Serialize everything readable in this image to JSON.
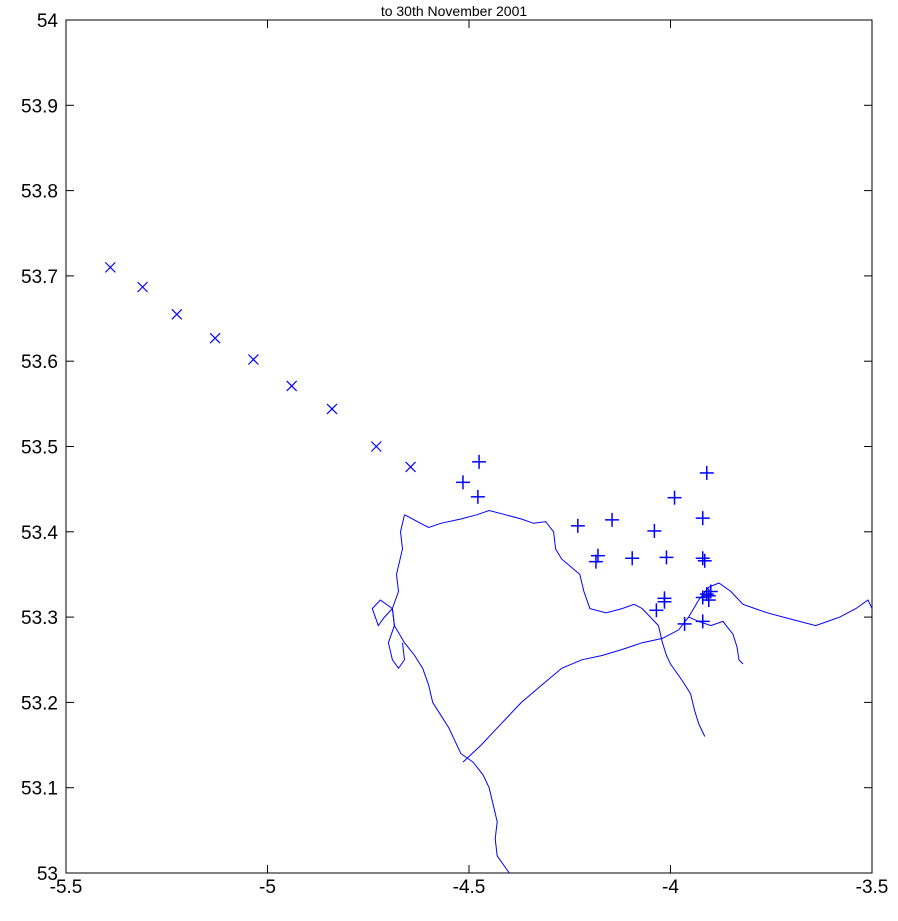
{
  "chart_data": {
    "type": "scatter",
    "title": "to 30th November 2001",
    "xlabel": "",
    "ylabel": "",
    "xlim": [
      -5.5,
      -3.5
    ],
    "ylim": [
      53,
      54
    ],
    "xticks": [
      -5.5,
      -5,
      -4.5,
      -4,
      -3.5
    ],
    "xtick_labels": [
      "-5.5",
      "-5",
      "-4.5",
      "-4",
      "-3.5"
    ],
    "yticks": [
      53,
      53.1,
      53.2,
      53.3,
      53.4,
      53.5,
      53.6,
      53.7,
      53.8,
      53.9,
      54
    ],
    "ytick_labels": [
      "53",
      "53.1",
      "53.2",
      "53.3",
      "53.4",
      "53.5",
      "53.6",
      "53.7",
      "53.8",
      "53.9",
      "54"
    ],
    "grid": false,
    "color": "#0000ff",
    "series": [
      {
        "marker": "x",
        "x": [
          -5.39,
          -5.31,
          -5.225,
          -5.13,
          -5.035,
          -4.94,
          -4.84,
          -4.73,
          -4.645
        ],
        "y": [
          53.71,
          53.687,
          53.655,
          53.627,
          53.602,
          53.571,
          53.544,
          53.5,
          53.476
        ]
      },
      {
        "marker": "+",
        "x": [
          -4.515,
          -4.475,
          -4.478,
          -4.23,
          -4.185,
          -4.18,
          -4.145,
          -4.095,
          -4.04,
          -4.035,
          -4.015,
          -4.01,
          -4.015,
          -3.99,
          -3.965,
          -3.92,
          -3.91,
          -3.92,
          -3.915,
          -3.91,
          -3.905,
          -3.92,
          -3.92,
          -3.9,
          -3.905
        ],
        "y": [
          53.458,
          53.482,
          53.441,
          53.407,
          53.365,
          53.372,
          53.414,
          53.369,
          53.401,
          53.308,
          53.318,
          53.37,
          53.322,
          53.44,
          53.292,
          53.416,
          53.469,
          53.369,
          53.366,
          53.327,
          53.32,
          53.295,
          53.323,
          53.33,
          53.325
        ]
      }
    ],
    "coastline": [
      [
        [
          -4.66,
          53.42
        ],
        [
          -4.62,
          53.41
        ],
        [
          -4.6,
          53.405
        ],
        [
          -4.57,
          53.41
        ],
        [
          -4.52,
          53.415
        ],
        [
          -4.48,
          53.42
        ],
        [
          -4.45,
          53.425
        ],
        [
          -4.41,
          53.42
        ],
        [
          -4.37,
          53.415
        ],
        [
          -4.34,
          53.41
        ],
        [
          -4.31,
          53.412
        ],
        [
          -4.29,
          53.4
        ],
        [
          -4.285,
          53.38
        ],
        [
          -4.27,
          53.368
        ],
        [
          -4.25,
          53.36
        ],
        [
          -4.225,
          53.35
        ],
        [
          -4.215,
          53.33
        ],
        [
          -4.2,
          53.31
        ],
        [
          -4.16,
          53.305
        ],
        [
          -4.12,
          53.31
        ],
        [
          -4.09,
          53.315
        ],
        [
          -4.07,
          53.31
        ],
        [
          -4.05,
          53.3
        ],
        [
          -4.03,
          53.29
        ],
        [
          -4.02,
          53.27
        ],
        [
          -4.01,
          53.255
        ],
        [
          -4.0,
          53.245
        ],
        [
          -3.97,
          53.225
        ],
        [
          -3.95,
          53.21
        ],
        [
          -3.94,
          53.19
        ],
        [
          -3.93,
          53.175
        ],
        [
          -3.915,
          53.16
        ]
      ],
      [
        [
          -4.66,
          53.42
        ],
        [
          -4.67,
          53.4
        ],
        [
          -4.665,
          53.38
        ],
        [
          -4.68,
          53.35
        ],
        [
          -4.675,
          53.33
        ],
        [
          -4.69,
          53.31
        ],
        [
          -4.685,
          53.29
        ],
        [
          -4.66,
          53.27
        ],
        [
          -4.635,
          53.255
        ],
        [
          -4.615,
          53.24
        ],
        [
          -4.6,
          53.22
        ],
        [
          -4.59,
          53.2
        ],
        [
          -4.57,
          53.185
        ],
        [
          -4.55,
          53.17
        ],
        [
          -4.535,
          53.155
        ],
        [
          -4.52,
          53.14
        ],
        [
          -4.49,
          53.13
        ],
        [
          -4.465,
          53.115
        ],
        [
          -4.45,
          53.1
        ],
        [
          -4.44,
          53.08
        ],
        [
          -4.43,
          53.06
        ],
        [
          -4.435,
          53.04
        ],
        [
          -4.43,
          53.02
        ],
        [
          -4.4,
          53.0
        ]
      ],
      [
        [
          -4.69,
          53.31
        ],
        [
          -4.71,
          53.3
        ],
        [
          -4.725,
          53.29
        ],
        [
          -4.74,
          53.31
        ],
        [
          -4.72,
          53.32
        ],
        [
          -4.69,
          53.31
        ],
        [
          -4.685,
          53.29
        ],
        [
          -4.7,
          53.27
        ],
        [
          -4.69,
          53.25
        ],
        [
          -4.675,
          53.24
        ],
        [
          -4.66,
          53.25
        ],
        [
          -4.665,
          53.27
        ]
      ],
      [
        [
          -4.515,
          53.13
        ],
        [
          -4.47,
          53.15
        ],
        [
          -4.42,
          53.175
        ],
        [
          -4.37,
          53.2
        ],
        [
          -4.32,
          53.22
        ],
        [
          -4.27,
          53.24
        ],
        [
          -4.22,
          53.25
        ],
        [
          -4.17,
          53.255
        ],
        [
          -4.12,
          53.262
        ],
        [
          -4.07,
          53.27
        ],
        [
          -4.02,
          53.275
        ],
        [
          -3.98,
          53.285
        ],
        [
          -3.955,
          53.3
        ]
      ],
      [
        [
          -3.955,
          53.3
        ],
        [
          -3.93,
          53.32
        ],
        [
          -3.905,
          53.335
        ],
        [
          -3.88,
          53.34
        ],
        [
          -3.85,
          53.33
        ],
        [
          -3.82,
          53.315
        ],
        [
          -3.79,
          53.31
        ],
        [
          -3.76,
          53.305
        ],
        [
          -3.72,
          53.3
        ],
        [
          -3.68,
          53.295
        ],
        [
          -3.64,
          53.29
        ],
        [
          -3.61,
          53.295
        ],
        [
          -3.58,
          53.3
        ],
        [
          -3.54,
          53.31
        ],
        [
          -3.51,
          53.32
        ],
        [
          -3.5,
          53.31
        ]
      ],
      [
        [
          -3.955,
          53.3
        ],
        [
          -3.93,
          53.295
        ],
        [
          -3.9,
          53.29
        ],
        [
          -3.87,
          53.295
        ],
        [
          -3.845,
          53.28
        ],
        [
          -3.835,
          53.265
        ],
        [
          -3.83,
          53.25
        ],
        [
          -3.82,
          53.245
        ]
      ]
    ]
  }
}
